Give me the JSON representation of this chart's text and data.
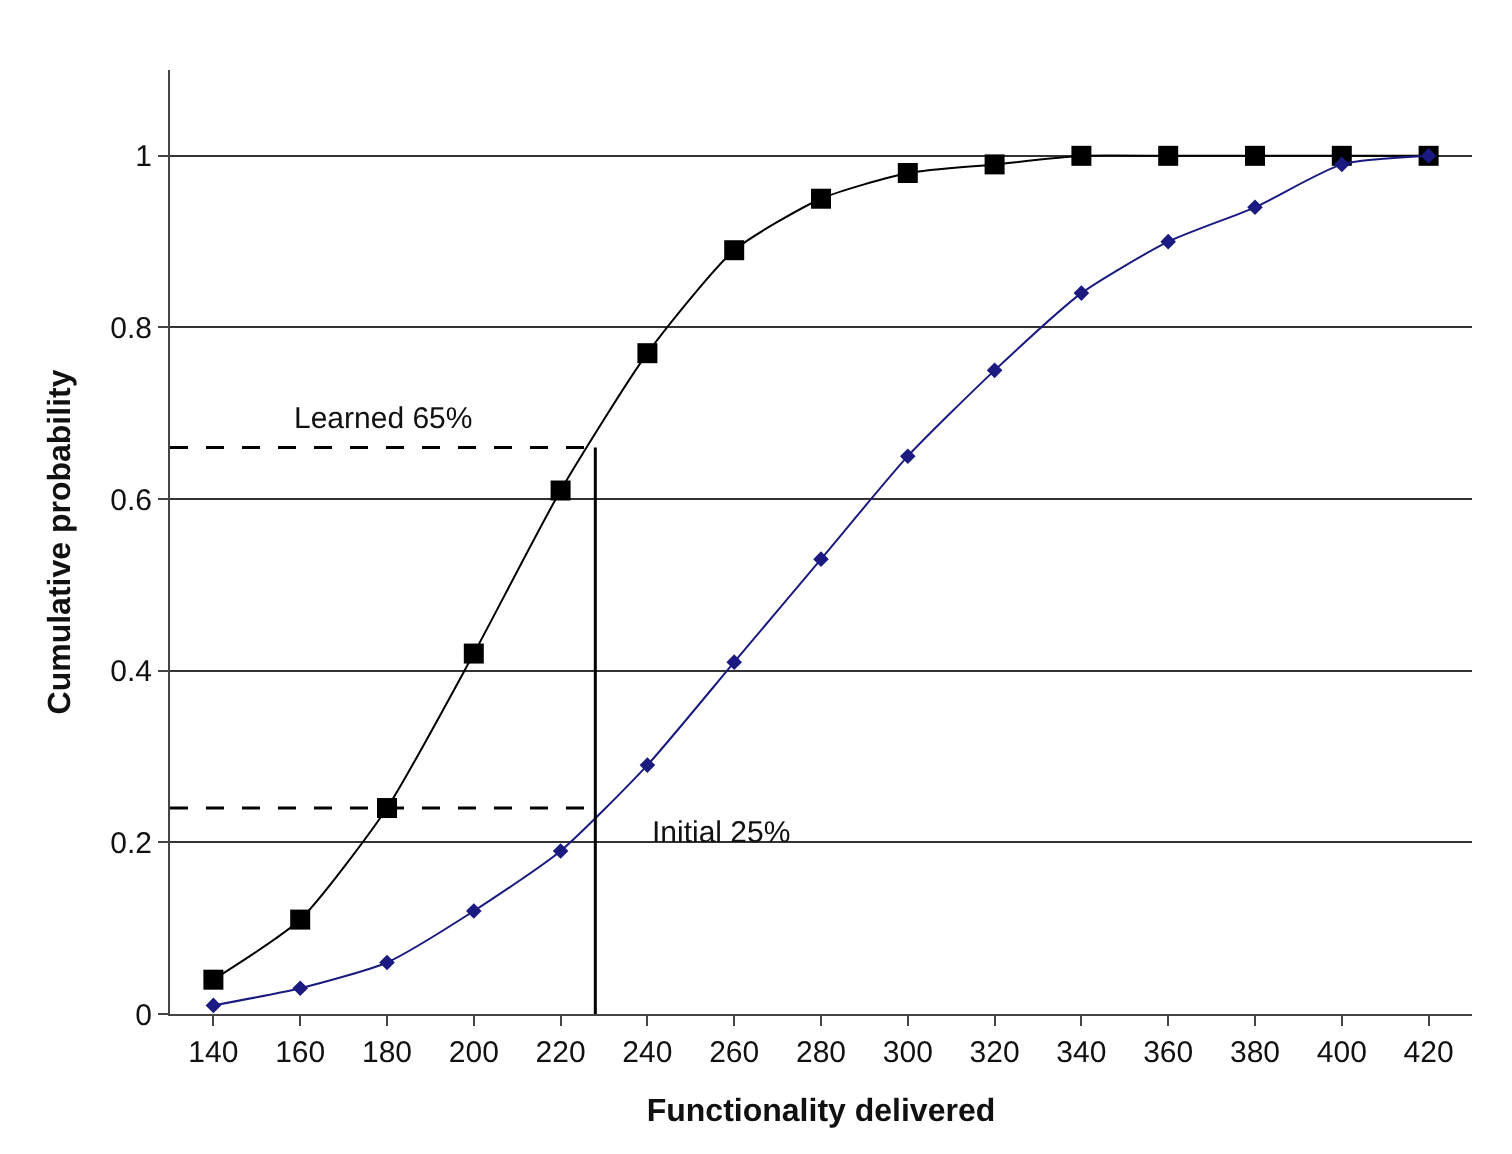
{
  "chart_data": {
    "type": "line",
    "xlabel": "Functionality delivered",
    "ylabel": "Cumulative probability",
    "x": [
      140,
      160,
      180,
      200,
      220,
      240,
      260,
      280,
      300,
      320,
      340,
      360,
      380,
      400,
      420
    ],
    "xlim": [
      130,
      430
    ],
    "xticks": [
      140,
      160,
      180,
      200,
      220,
      240,
      260,
      280,
      300,
      320,
      340,
      360,
      380,
      400,
      420
    ],
    "ylim": [
      0,
      1.1
    ],
    "yticks": [
      0,
      0.2,
      0.4,
      0.6,
      0.8,
      1
    ],
    "grid": "y",
    "series": [
      {
        "color": "#000000",
        "marker": "square",
        "values": [
          0.04,
          0.11,
          0.24,
          0.42,
          0.61,
          0.77,
          0.89,
          0.95,
          0.98,
          0.99,
          1.0,
          1.0,
          1.0,
          1.0,
          1.0
        ]
      },
      {
        "color": "#1a1a80",
        "marker": "diamond",
        "values": [
          0.01,
          0.03,
          0.06,
          0.12,
          0.19,
          0.29,
          0.41,
          0.53,
          0.65,
          0.75,
          0.84,
          0.9,
          0.94,
          0.99,
          1.0
        ]
      }
    ],
    "ref_lines": [
      {
        "axis": "y",
        "value": 0.66,
        "label": "Learned 65%",
        "color": "#000000",
        "line_style": "dashed"
      },
      {
        "axis": "y",
        "value": 0.24,
        "label": "Initial 25%",
        "color": "#000000",
        "line_style": "dashed"
      },
      {
        "axis": "x",
        "value": 228,
        "color": "#000000",
        "line_style": "solid"
      }
    ]
  }
}
